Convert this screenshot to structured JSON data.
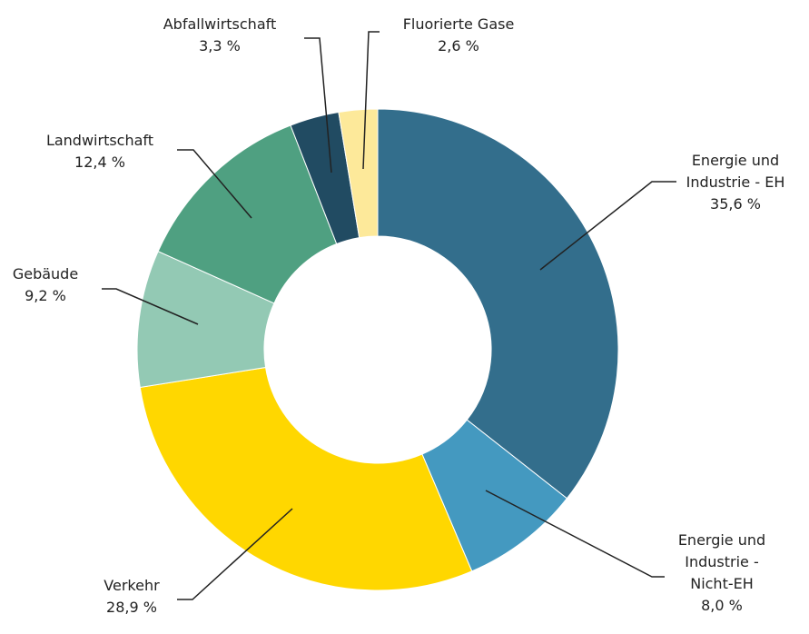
{
  "chart_data": {
    "type": "donut",
    "categories": [
      "Energie und Industrie - EH",
      "Energie und Industrie - Nicht-EH",
      "Verkehr",
      "Gebäude",
      "Landwirtschaft",
      "Abfallwirtschaft",
      "Fluorierte Gase"
    ],
    "values": [
      35.6,
      8.0,
      28.9,
      9.2,
      12.4,
      3.3,
      2.6
    ],
    "value_labels": [
      "35,6 %",
      "8,0 %",
      "28,9 %",
      "9,2 %",
      "12,4 %",
      "3,3 %",
      "2,6 %"
    ],
    "colors": [
      "#336e8c",
      "#4499c0",
      "#ffd700",
      "#93c9b4",
      "#4fa081",
      "#214b62",
      "#fde99a"
    ]
  }
}
